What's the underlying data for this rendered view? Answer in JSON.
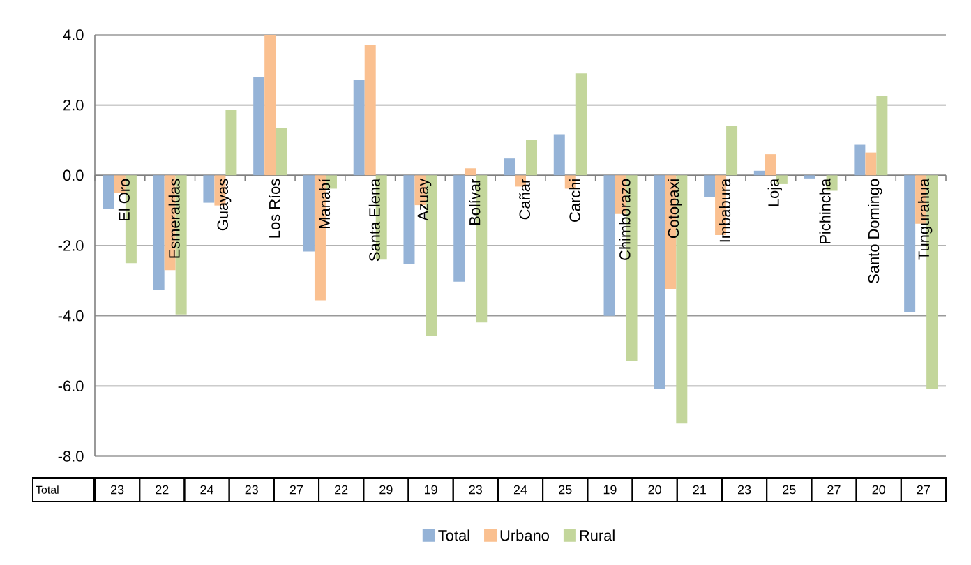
{
  "chart_data": {
    "type": "bar",
    "categories": [
      "El Oro",
      "Esmeraldas",
      "Guayas",
      "Los Ríos",
      "Manabí",
      "Santa Elena",
      "Azuay",
      "Bolívar",
      "Cañar",
      "Carchi",
      "Chimborazo",
      "Cotopaxi",
      "Imbabura",
      "Loja",
      "Pichincha",
      "Santo Domingo",
      "Tungurahua"
    ],
    "series": [
      {
        "name": "Total",
        "color": "#95b3d7",
        "values": [
          -0.95,
          -3.27,
          -0.78,
          2.79,
          -2.17,
          2.73,
          -2.52,
          -3.03,
          0.48,
          1.17,
          -4.0,
          -6.08,
          -0.61,
          0.13,
          -0.09,
          0.87,
          -3.89
        ]
      },
      {
        "name": "Urbano",
        "color": "#fac090",
        "values": [
          -0.49,
          -2.7,
          -0.86,
          4.0,
          -3.56,
          3.71,
          -0.85,
          0.2,
          -0.32,
          -0.38,
          -1.1,
          -3.23,
          -1.7,
          0.6,
          0.0,
          0.65,
          -1.38
        ]
      },
      {
        "name": "Rural",
        "color": "#c3d69b",
        "values": [
          -2.5,
          -3.96,
          1.87,
          1.36,
          -0.38,
          -2.4,
          -4.58,
          -4.19,
          1.0,
          2.9,
          -5.28,
          -7.07,
          1.4,
          -0.25,
          -0.44,
          2.26,
          -6.08
        ]
      }
    ],
    "ylim": [
      -8,
      4
    ],
    "yticks": [
      {
        "value": -8,
        "label": "-8.0"
      },
      {
        "value": -6,
        "label": "-6.0"
      },
      {
        "value": -4,
        "label": "-4.0"
      },
      {
        "value": -2,
        "label": "-2.0"
      },
      {
        "value": 0,
        "label": "0.0"
      },
      {
        "value": 2,
        "label": "2.0"
      },
      {
        "value": 4,
        "label": "4.0"
      }
    ],
    "grid": "y",
    "legend": "bottom",
    "annotations": [
      "Total",
      "23",
      "22",
      "24",
      "23",
      "27",
      "22",
      "29",
      "19",
      "23",
      "24",
      "25",
      "19",
      "20",
      "21",
      "23",
      "25",
      "27",
      "20",
      "27"
    ]
  }
}
